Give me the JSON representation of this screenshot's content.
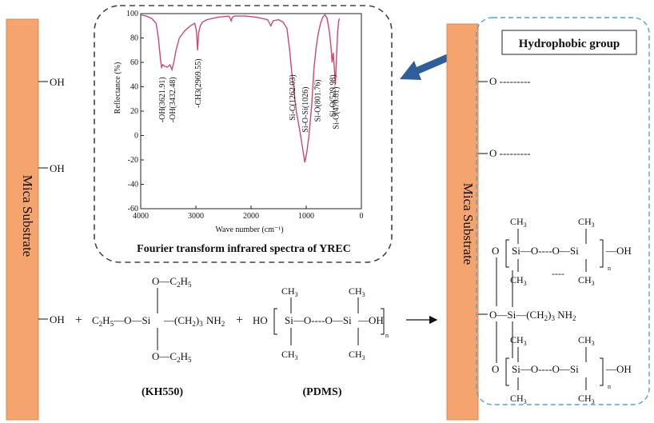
{
  "substrate": {
    "label": "Mica Substrate",
    "color": "#f4a46c"
  },
  "left_groups": [
    "—OH",
    "—OH",
    "—OH"
  ],
  "reaction": {
    "plus": "+",
    "kh550": {
      "top_oc2h5": "O—C2H5",
      "bottom_oc2h5": "O—C2H5",
      "chain_left": "C2H5—O—Si",
      "chain_right": "(CH2)3",
      "amine": "NH2",
      "label": "(KH550)"
    },
    "pdms": {
      "ho": "HO",
      "si": "Si",
      "o": "O",
      "oh": "OH",
      "ch3": "CH3",
      "n": "n",
      "label": "(PDMS)"
    }
  },
  "inset": {
    "title": "Fourier transform infrared spectra of YREC",
    "box_border": "#444444"
  },
  "chart_data": {
    "type": "line",
    "xlabel": "Wave number (cm⁻¹)",
    "ylabel": "Reflectance (%)",
    "xlim": [
      4000,
      0
    ],
    "ylim": [
      -60,
      100
    ],
    "x_ticks": [
      4000,
      3000,
      2000,
      1000,
      0
    ],
    "y_ticks": [
      100,
      80,
      60,
      40,
      20,
      0,
      -20,
      -40,
      -60
    ],
    "line_color": "#d0466e",
    "series": [
      {
        "x": [
          4000,
          3900,
          3800,
          3720,
          3680,
          3640,
          3622,
          3600,
          3570,
          3520,
          3470,
          3433,
          3400,
          3360,
          3300,
          3200,
          3100,
          3020,
          2990,
          2970,
          2950,
          2920,
          2880,
          2800,
          2600,
          2400,
          2360,
          2340,
          2300,
          2100,
          1900,
          1700,
          1640,
          1600,
          1500,
          1420,
          1350,
          1300,
          1262,
          1230,
          1180,
          1120,
          1060,
          1026,
          990,
          950,
          900,
          860,
          820,
          802,
          780,
          740,
          700,
          660,
          620,
          580,
          550,
          530,
          510,
          490,
          471,
          455,
          430,
          410,
          400
        ],
        "y": [
          99,
          98,
          96,
          92,
          80,
          62,
          56,
          58,
          57,
          56,
          58,
          54,
          60,
          70,
          80,
          86,
          90,
          92,
          86,
          70,
          84,
          90,
          93,
          95,
          97,
          98,
          94,
          97,
          98,
          98,
          97,
          95,
          90,
          94,
          95,
          93,
          88,
          70,
          52,
          40,
          20,
          5,
          -12,
          -22,
          -14,
          0,
          25,
          55,
          72,
          78,
          84,
          92,
          97,
          99,
          96,
          85,
          72,
          60,
          68,
          55,
          42,
          60,
          85,
          94,
          96
        ]
      }
    ],
    "annotations": [
      "-OH(3621.91)",
      "-OH(3432.48)",
      "-CH3(2969.55)",
      "Si-C(1262.03)",
      "Si-O-Si(1026)",
      "Si-O(801.76)",
      "Si-O(529.98)",
      "Si-O(470.81)"
    ]
  },
  "right": {
    "hydrophobic_label": "Hydrophobic group",
    "box_border": "#4aa6d8",
    "arrow_color": "#2f5f9a",
    "o_dashed": "O ---------",
    "chain_amine": "NH2",
    "chain": "(CH2)3",
    "si": "Si",
    "o": "O",
    "oh": "OH",
    "ch3": "CH3",
    "n": "n",
    "dash_mid": "----"
  },
  "arrow": "→"
}
